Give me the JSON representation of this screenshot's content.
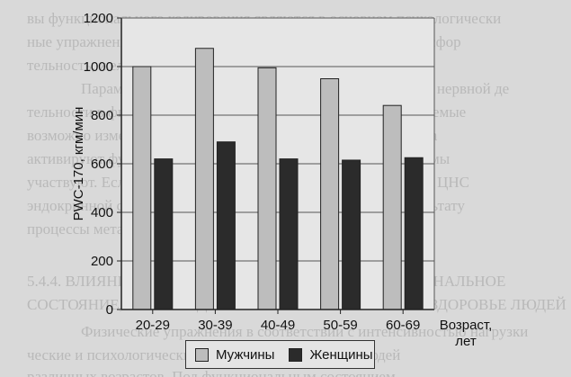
{
  "background_text": [
    "вы функционального кодирования являются в основном психологически",
    "ные упражнения, одни из которых ведут к направленной трансфор",
    "тельность, желез внутренней секреции.",
    "Параметры реализации передачи сигнала и регуляции нервной де",
    "тельности в физиологических процессах. Гормоны, синтезируемые",
    "возможно изменение отдельных реакций и функций организма",
    "активируют функции ЦНС и гипоталамо-гипофизарной системы",
    "участвуют. Если изменится работа нервной системы, функции ЦНС",
    "эндокринной системы, приводящая к функциональному результату",
    "процессы метаболизма тканей.",
    "5.4.4. ВЛИЯНИЕ ФИЗИЧЕСКОЙ НАГРУЗКИ НА ФУНКЦИОНАЛЬНОЕ",
    "СОСТОЯНИЕ, ПРОИЗВОДИТЕЛЬНОСТЬ И ФИЗИЧЕСКОЕ ЗДОРОВЬЕ ЛЮДЕЙ",
    "Физические упражнения в соответствии с интенсивностью нагрузки",
    "ческие и психологические особенности организма людей",
    "различных возрастов. Под функциональным состоянием"
  ],
  "chart_data": {
    "type": "bar",
    "categories": [
      "20-29",
      "30-39",
      "40-49",
      "50-59",
      "60-69"
    ],
    "series": [
      {
        "name": "Мужчины",
        "values": [
          1000,
          1075,
          995,
          950,
          840
        ],
        "color": "#bdbdbd"
      },
      {
        "name": "Женщины",
        "values": [
          620,
          690,
          620,
          615,
          625
        ],
        "color": "#2b2b2b"
      }
    ],
    "ylabel": "PWC-170, кгм/мин",
    "xlabel": "Возраст, лет",
    "xlabel_lines": [
      "Возраст,",
      "лет"
    ],
    "ylim": [
      0,
      1200
    ],
    "yticks": [
      0,
      200,
      400,
      600,
      800,
      1000,
      1200
    ],
    "grid": true,
    "legend_position": "bottom"
  },
  "legend": {
    "male_label": "Мужчины",
    "female_label": "Женщины"
  }
}
